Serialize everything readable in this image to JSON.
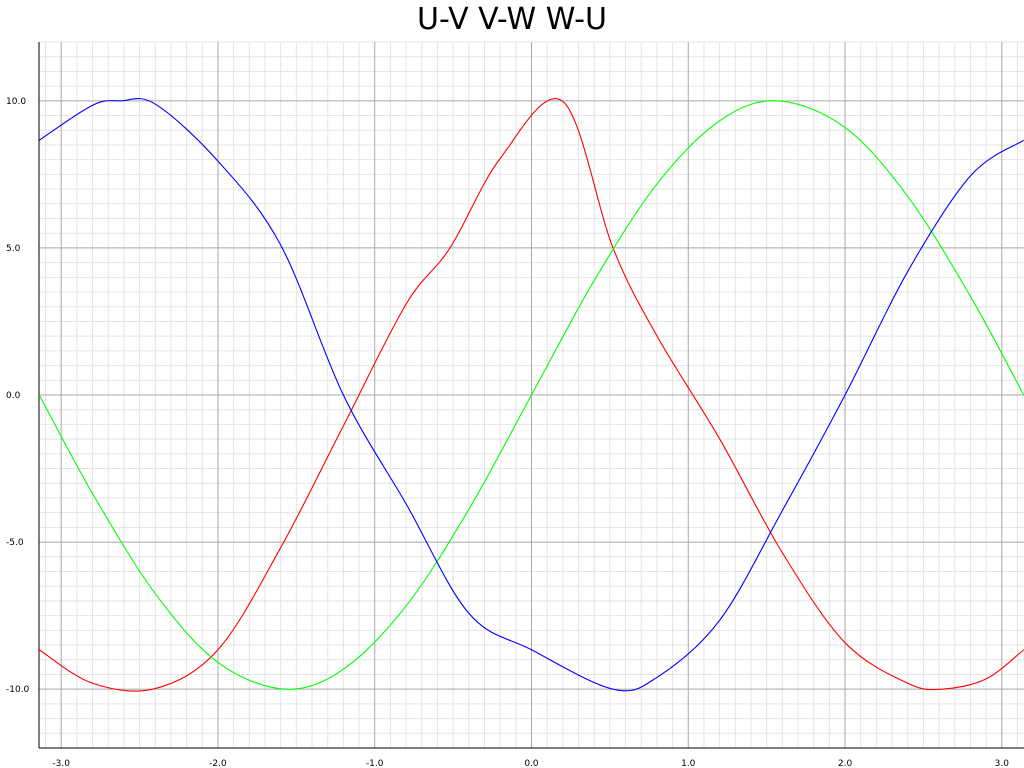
{
  "chart_data": {
    "type": "line",
    "title": "U-V V-W W-U",
    "xlabel": "",
    "ylabel": "",
    "xlim": [
      -3.14159,
      3.14159
    ],
    "ylim": [
      -12,
      12
    ],
    "grid": true,
    "minor_grid": true,
    "legend": "none",
    "x_ticks": [
      -3.0,
      -2.0,
      -1.0,
      0.0,
      1.0,
      2.0,
      3.0
    ],
    "x_tick_labels": [
      "-3.0",
      "-2.0",
      "-1.0",
      "0.0",
      "1.0",
      "2.0",
      "3.0"
    ],
    "y_ticks": [
      10.0,
      5.0,
      0.0,
      -5.0,
      -10.0
    ],
    "y_tick_labels": [
      "10.0",
      "5.0",
      "0.0",
      "-5.0",
      "-10.0"
    ],
    "series": [
      {
        "color": "#ff0000",
        "x": [
          -3.14,
          -2.8,
          -2.4,
          -2.0,
          -1.6,
          -1.2,
          -0.8,
          -0.52,
          -0.2,
          0.2,
          0.52,
          0.8,
          1.2,
          1.6,
          2.0,
          2.4,
          2.62,
          2.9,
          3.14
        ],
        "values": [
          -8.66,
          -9.8,
          -9.98,
          -8.66,
          -5.19,
          -1.05,
          3.09,
          5.0,
          8.04,
          9.98,
          5.0,
          2.01,
          -1.49,
          -5.36,
          -8.42,
          -9.8,
          -10.0,
          -9.65,
          -8.66
        ]
      },
      {
        "color": "#00ff00",
        "x": [
          -3.14,
          -2.8,
          -2.4,
          -2.0,
          -1.57,
          -1.2,
          -0.8,
          -0.4,
          0.0,
          0.4,
          0.8,
          1.2,
          1.57,
          2.0,
          2.4,
          2.8,
          3.14
        ],
        "values": [
          0.0,
          -3.35,
          -6.75,
          -9.09,
          -10.0,
          -9.32,
          -7.17,
          -3.89,
          0.0,
          3.89,
          7.17,
          9.32,
          10.0,
          9.09,
          6.75,
          3.35,
          0.0
        ]
      },
      {
        "color": "#0000ff",
        "x": [
          -3.14,
          -2.8,
          -2.62,
          -2.4,
          -2.0,
          -1.6,
          -1.2,
          -0.8,
          -0.4,
          0.0,
          0.52,
          0.8,
          1.2,
          1.6,
          2.0,
          2.4,
          2.8,
          3.14
        ],
        "values": [
          8.66,
          9.85,
          10.0,
          9.89,
          7.95,
          5.1,
          0.0,
          -3.7,
          -7.42,
          -8.66,
          -10.0,
          -9.6,
          -7.66,
          -3.93,
          0.0,
          4.2,
          7.45,
          8.66
        ]
      }
    ]
  }
}
